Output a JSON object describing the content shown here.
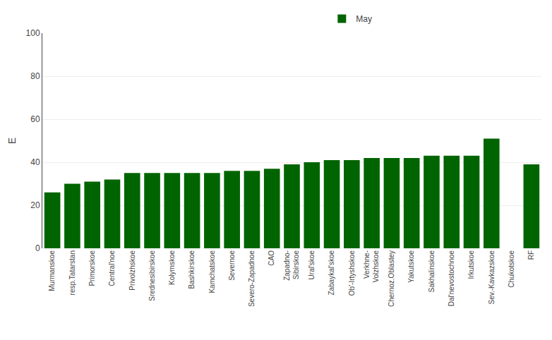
{
  "chart_data": {
    "type": "bar",
    "ylabel": "E",
    "categories": [
      "Murmanskoe",
      "resp.Tatarstan",
      "Primorskoe",
      "Central'noe",
      "Privolzhskoe",
      "Srednesibirskoe",
      "Kolymskoe",
      "Bashkirskoe",
      "Kamchatskoe",
      "Severnoe",
      "Severo-Zapadnoe",
      "CAO",
      "Zapadno-\nSibirskoe",
      "Ural'skoe",
      "Zabaykal'skoe",
      "Ob'-Irtyshskoe",
      "Verkhnе-\nVolzhskoe",
      "Chernoz.Oblastey",
      "Yakutskoe",
      "Sakhalinskoe",
      "Dal'nevostochnoe",
      "Irkutskoe",
      "Sev.-Kavkazskoe",
      "Chukotskoe",
      "RF"
    ],
    "series": [
      {
        "name": "May",
        "values": [
          26,
          30,
          31,
          32,
          35,
          35,
          35,
          35,
          35,
          36,
          36,
          37,
          39,
          40,
          41,
          41,
          42,
          42,
          42,
          43,
          43,
          43,
          51,
          0,
          39
        ],
        "colors": [
          "#006400",
          "#006400",
          "#006400",
          "#006400",
          "#006400",
          "#006400",
          "#006400",
          "#006400",
          "#006400",
          "#006400",
          "#006400",
          "#006400",
          "#006400",
          "#006400",
          "#006400",
          "#006400",
          "#006400",
          "#006400",
          "#006400",
          "#006400",
          "#006400",
          "#006400",
          "#006400",
          "#bebebe",
          "#006400"
        ]
      }
    ],
    "ylim": [
      0,
      100
    ],
    "yticks": [
      0,
      20,
      40,
      60,
      80,
      100
    ],
    "grid": true,
    "legend": "top"
  }
}
